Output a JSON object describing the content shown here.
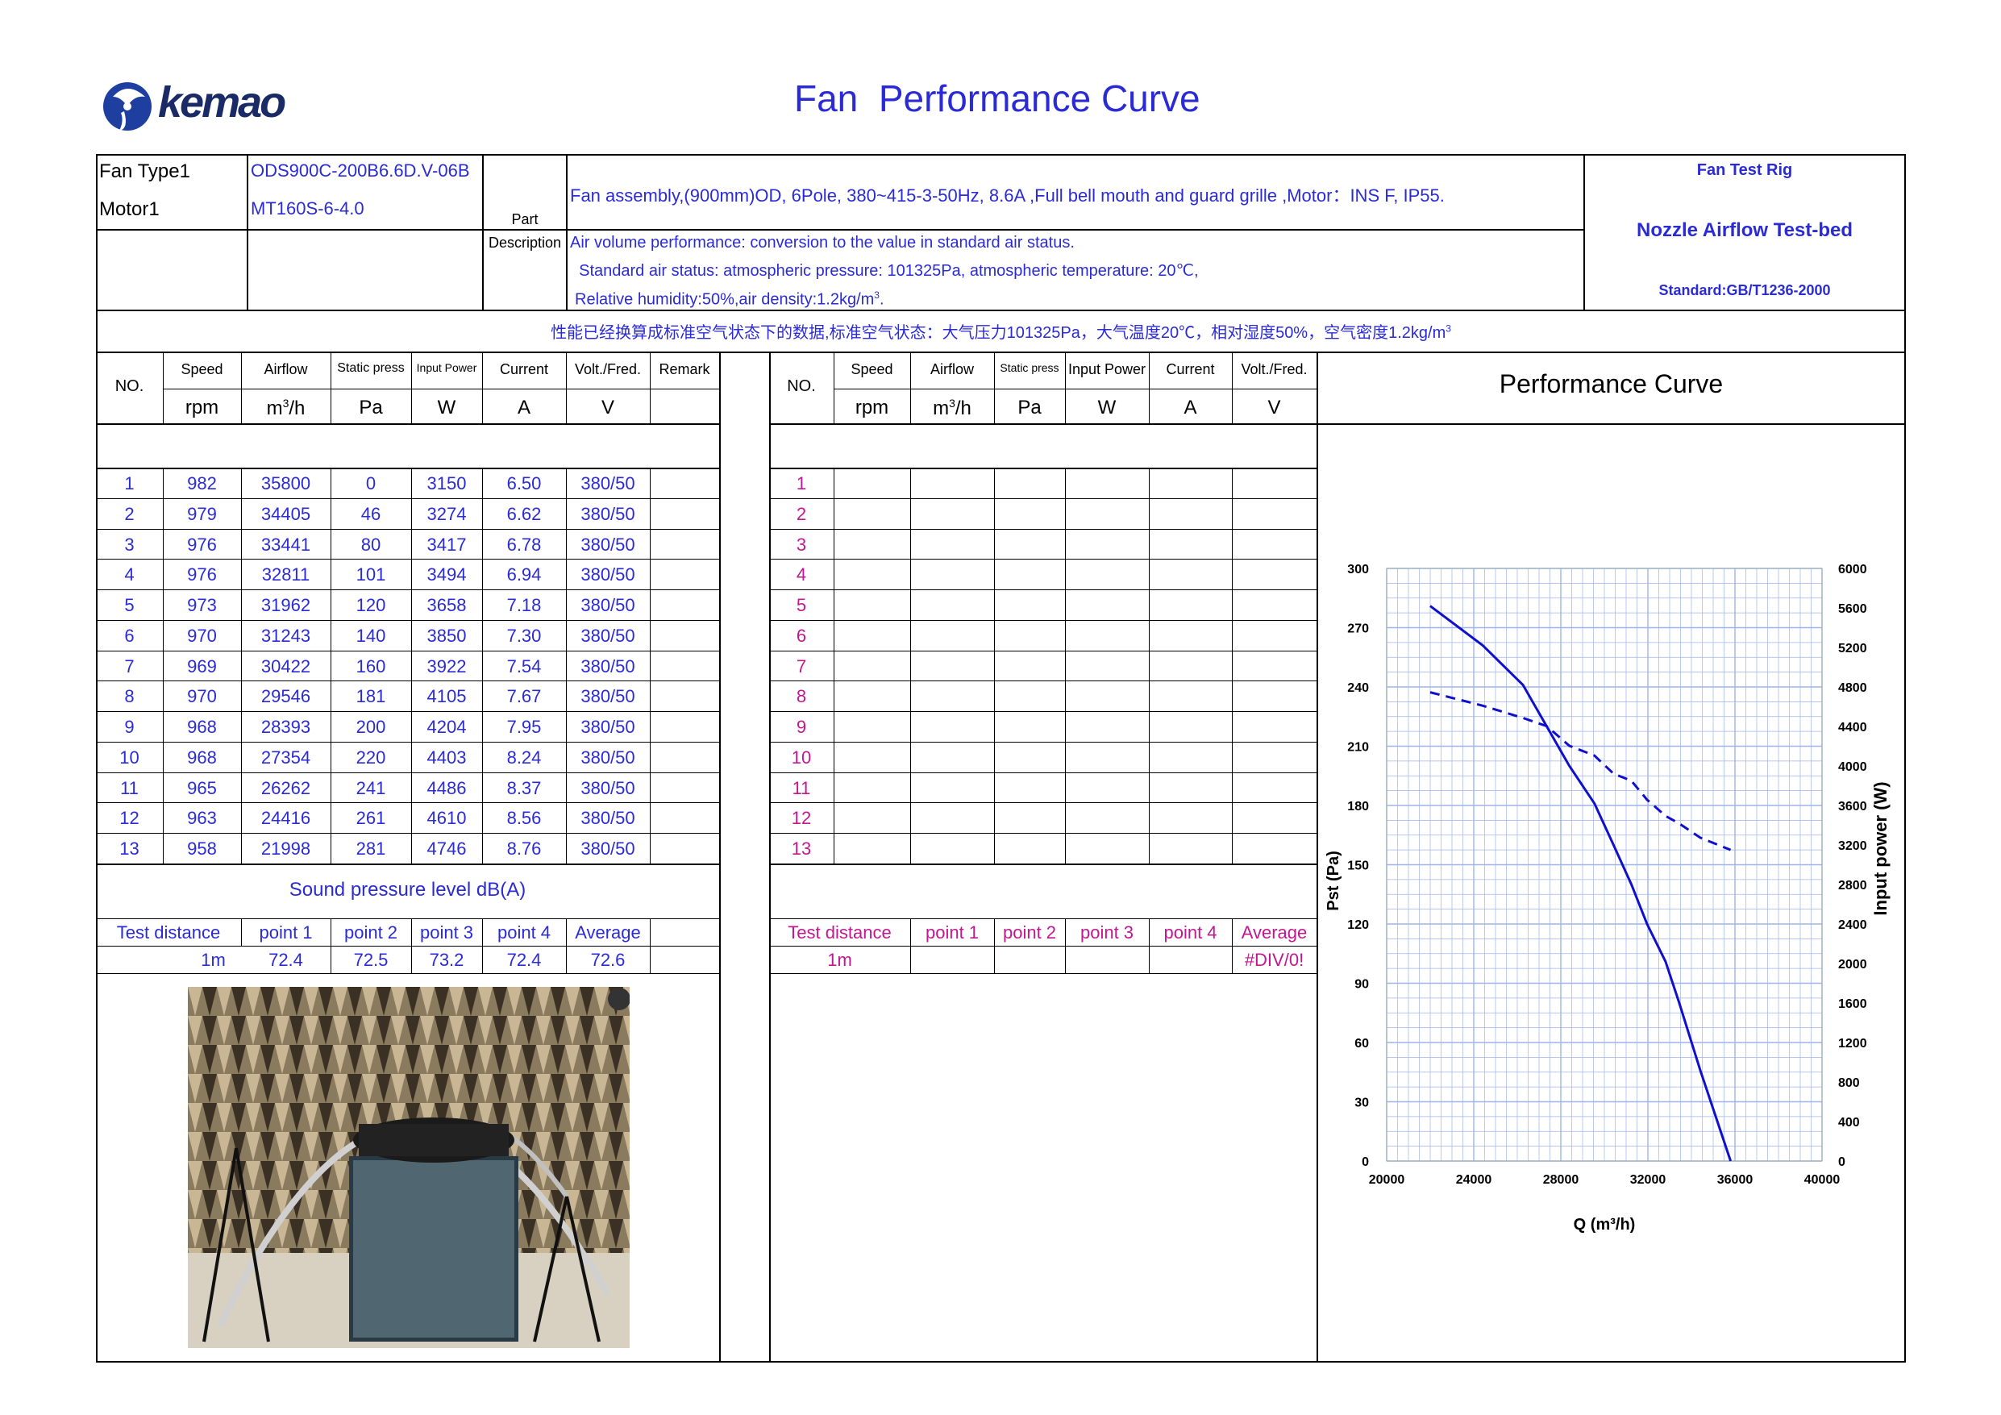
{
  "title": "Fan  Performance Curve",
  "logo": {
    "text": "kemao"
  },
  "header": {
    "fan_type_label": "Fan Type1",
    "fan_type_value": "ODS900C-200B6.6D.V-06B",
    "motor_label": "Motor1",
    "motor_value": "MT160S-6-4.0",
    "part_label_1": "Part",
    "part_label_2": "Description",
    "desc_1": "Fan assembly,(900mm)OD, 6Pole, 380~415-3-50Hz, 8.6A ,Full bell mouth and guard grille ,Motor：INS F, IP55.",
    "desc_2": "Air volume performance: conversion to the value in standard air status.",
    "desc_3": "  Standard air status: atmospheric pressure: 101325Pa, atmospheric temperature: 20℃,",
    "desc_4": "Relative humidity:50%,air density:1.2kg/m",
    "desc_4_sup": "3",
    "desc_4_end": ".",
    "rig_title": "Fan Test Rig",
    "rig_name": "Nozzle Airflow Test-bed",
    "rig_standard": "Standard:GB/T1236-2000",
    "chinese_note": "性能已经换算成标准空气状态下的数据,标准空气状态：大气压力101325Pa，大气温度20℃，相对湿度50%，空气密度1.2kg/m",
    "chinese_note_sup": "3"
  },
  "table_headers": {
    "no": "NO.",
    "speed": "Speed",
    "speed_unit": "rpm",
    "airflow": "Airflow",
    "airflow_unit": "m",
    "airflow_unit_sup": "3",
    "airflow_unit_end": "/h",
    "static": "Static press",
    "static_unit": "Pa",
    "power": "Input Power",
    "power_unit": "W",
    "current": "Current",
    "current_unit": "A",
    "volt": "Volt./Fred.",
    "volt_unit": "V",
    "remark": "Remark"
  },
  "left_rows": [
    [
      "1",
      "982",
      "35800",
      "0",
      "3150",
      "6.50",
      "380/50"
    ],
    [
      "2",
      "979",
      "34405",
      "46",
      "3274",
      "6.62",
      "380/50"
    ],
    [
      "3",
      "976",
      "33441",
      "80",
      "3417",
      "6.78",
      "380/50"
    ],
    [
      "4",
      "976",
      "32811",
      "101",
      "3494",
      "6.94",
      "380/50"
    ],
    [
      "5",
      "973",
      "31962",
      "120",
      "3658",
      "7.18",
      "380/50"
    ],
    [
      "6",
      "970",
      "31243",
      "140",
      "3850",
      "7.30",
      "380/50"
    ],
    [
      "7",
      "969",
      "30422",
      "160",
      "3922",
      "7.54",
      "380/50"
    ],
    [
      "8",
      "970",
      "29546",
      "181",
      "4105",
      "7.67",
      "380/50"
    ],
    [
      "9",
      "968",
      "28393",
      "200",
      "4204",
      "7.95",
      "380/50"
    ],
    [
      "10",
      "968",
      "27354",
      "220",
      "4403",
      "8.24",
      "380/50"
    ],
    [
      "11",
      "965",
      "26262",
      "241",
      "4486",
      "8.37",
      "380/50"
    ],
    [
      "12",
      "963",
      "24416",
      "261",
      "4610",
      "8.56",
      "380/50"
    ],
    [
      "13",
      "958",
      "21998",
      "281",
      "4746",
      "8.76",
      "380/50"
    ]
  ],
  "right_rows": [
    "1",
    "2",
    "3",
    "4",
    "5",
    "6",
    "7",
    "8",
    "9",
    "10",
    "11",
    "12",
    "13"
  ],
  "sound": {
    "title": "Sound pressure level dB(A)",
    "headers": [
      "Test distance",
      "point 1",
      "point 2",
      "point 3",
      "point 4",
      "Average"
    ],
    "left_values": [
      "1m",
      "72.4",
      "72.5",
      "73.2",
      "72.4",
      "72.6"
    ],
    "right_values": [
      "1m",
      "",
      "",
      "",
      "",
      "#DIV/0!"
    ]
  },
  "colors": {
    "blue": "#2b2bd6",
    "magenta": "#c2188f",
    "grid": "#9fb3ec",
    "curve": "#1010cc"
  },
  "chart_data": {
    "type": "line",
    "title": "Performance Curve",
    "xlabel": "Q (m³/h)",
    "ylabel": "Pst (Pa)",
    "y2label": "Input power (W)",
    "xlim": [
      20000,
      40000
    ],
    "ylim": [
      0,
      300
    ],
    "y2lim": [
      0,
      6000
    ],
    "x_ticks": [
      "20000",
      "24000",
      "28000",
      "32000",
      "36000",
      "40000"
    ],
    "y_ticks": [
      "0",
      "30",
      "60",
      "90",
      "120",
      "150",
      "180",
      "210",
      "240",
      "270",
      "300"
    ],
    "y2_ticks": [
      "0",
      "400",
      "800",
      "1200",
      "1600",
      "2000",
      "2400",
      "2800",
      "3200",
      "3600",
      "4000",
      "4400",
      "4800",
      "5200",
      "5600",
      "6000"
    ],
    "grid": true,
    "series": [
      {
        "axis": "left",
        "style": "solid",
        "x": [
          21998,
          24416,
          26262,
          27354,
          28393,
          29546,
          30422,
          31243,
          31962,
          32811,
          33441,
          34405,
          35800
        ],
        "y": [
          281,
          261,
          241,
          220,
          200,
          181,
          160,
          140,
          120,
          101,
          80,
          46,
          0
        ]
      },
      {
        "axis": "right",
        "style": "dashed",
        "x": [
          21998,
          24416,
          26262,
          27354,
          28393,
          29546,
          30422,
          31243,
          31962,
          32811,
          33441,
          34405,
          35800
        ],
        "y": [
          4746,
          4610,
          4486,
          4403,
          4204,
          4105,
          3922,
          3850,
          3658,
          3494,
          3417,
          3274,
          3150
        ]
      }
    ]
  }
}
